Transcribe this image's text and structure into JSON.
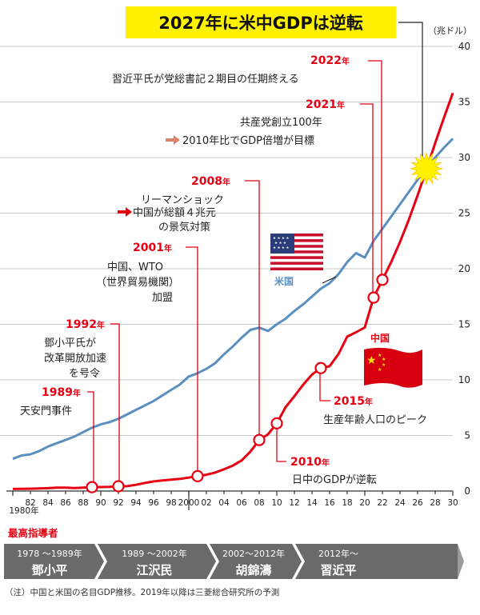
{
  "chart_data": {
    "type": "line",
    "title": "2027年に米中GDPは逆転",
    "ylabel": "（兆ドル）",
    "ylim": [
      0,
      40
    ],
    "yticks": [
      0,
      5,
      10,
      15,
      20,
      25,
      30,
      35,
      40
    ],
    "xlim": [
      1980,
      2030
    ],
    "xtick_labels": [
      {
        "year": 1980,
        "label": "1980年"
      },
      {
        "year": 1982,
        "label": "82"
      },
      {
        "year": 1984,
        "label": "84"
      },
      {
        "year": 1986,
        "label": "86"
      },
      {
        "year": 1988,
        "label": "88"
      },
      {
        "year": 1990,
        "label": "90"
      },
      {
        "year": 1992,
        "label": "92"
      },
      {
        "year": 1994,
        "label": "94"
      },
      {
        "year": 1996,
        "label": "96"
      },
      {
        "year": 1998,
        "label": "98"
      },
      {
        "year": 2000,
        "label": "2000"
      },
      {
        "year": 2002,
        "label": "02"
      },
      {
        "year": 2004,
        "label": "04"
      },
      {
        "year": 2006,
        "label": "06"
      },
      {
        "year": 2008,
        "label": "08"
      },
      {
        "year": 2010,
        "label": "10"
      },
      {
        "year": 2012,
        "label": "12"
      },
      {
        "year": 2014,
        "label": "14"
      },
      {
        "year": 2016,
        "label": "16"
      },
      {
        "year": 2018,
        "label": "18"
      },
      {
        "year": 2020,
        "label": "20"
      },
      {
        "year": 2022,
        "label": "22"
      },
      {
        "year": 2024,
        "label": "24"
      },
      {
        "year": 2026,
        "label": "26"
      },
      {
        "year": 2028,
        "label": "28"
      },
      {
        "year": 2030,
        "label": "30"
      }
    ],
    "series": [
      {
        "name": "米国",
        "color": "#5b8fc0",
        "x": [
          1980,
          1981,
          1982,
          1983,
          1984,
          1985,
          1986,
          1987,
          1988,
          1989,
          1990,
          1991,
          1992,
          1993,
          1994,
          1995,
          1996,
          1997,
          1998,
          1999,
          2000,
          2001,
          2002,
          2003,
          2004,
          2005,
          2006,
          2007,
          2008,
          2009,
          2010,
          2011,
          2012,
          2013,
          2014,
          2015,
          2016,
          2017,
          2018,
          2019,
          2020,
          2021,
          2022,
          2023,
          2024,
          2025,
          2026,
          2027,
          2028,
          2029,
          2030
        ],
        "values": [
          2.9,
          3.2,
          3.3,
          3.6,
          4.0,
          4.3,
          4.6,
          4.9,
          5.3,
          5.7,
          6.0,
          6.2,
          6.5,
          6.9,
          7.3,
          7.7,
          8.1,
          8.6,
          9.1,
          9.6,
          10.3,
          10.6,
          11.0,
          11.5,
          12.3,
          13.0,
          13.8,
          14.5,
          14.7,
          14.4,
          15.0,
          15.5,
          16.2,
          16.8,
          17.5,
          18.2,
          18.7,
          19.5,
          20.6,
          21.4,
          21.0,
          22.5,
          23.6,
          24.7,
          25.8,
          26.9,
          28.0,
          29.0,
          30.0,
          30.9,
          31.7
        ]
      },
      {
        "name": "中国",
        "color": "#e60012",
        "x": [
          1980,
          1981,
          1982,
          1983,
          1984,
          1985,
          1986,
          1987,
          1988,
          1989,
          1990,
          1991,
          1992,
          1993,
          1994,
          1995,
          1996,
          1997,
          1998,
          1999,
          2000,
          2001,
          2002,
          2003,
          2004,
          2005,
          2006,
          2007,
          2008,
          2009,
          2010,
          2011,
          2012,
          2013,
          2014,
          2015,
          2016,
          2017,
          2018,
          2019,
          2020,
          2021,
          2022,
          2023,
          2024,
          2025,
          2026,
          2027,
          2028,
          2029,
          2030
        ],
        "values": [
          0.19,
          0.2,
          0.21,
          0.23,
          0.26,
          0.31,
          0.3,
          0.27,
          0.31,
          0.35,
          0.36,
          0.38,
          0.43,
          0.44,
          0.56,
          0.73,
          0.86,
          0.96,
          1.03,
          1.09,
          1.21,
          1.34,
          1.47,
          1.66,
          1.96,
          2.29,
          2.75,
          3.55,
          4.59,
          5.1,
          6.09,
          7.55,
          8.53,
          9.57,
          10.48,
          11.06,
          11.23,
          12.31,
          13.89,
          14.28,
          14.72,
          17.4,
          19.0,
          20.6,
          22.4,
          24.4,
          26.6,
          28.9,
          31.3,
          33.6,
          35.8
        ]
      }
    ],
    "highlighted_points": [
      {
        "year": 1989,
        "value": 0.35
      },
      {
        "year": 1992,
        "value": 0.43
      },
      {
        "year": 2001,
        "value": 1.34
      },
      {
        "year": 2008,
        "value": 4.59
      },
      {
        "year": 2010,
        "value": 6.09
      },
      {
        "year": 2015,
        "value": 11.06
      },
      {
        "year": 2021,
        "value": 17.4
      },
      {
        "year": 2022,
        "value": 19.0
      }
    ],
    "crossover": {
      "year": 2027,
      "value": 29.0
    }
  },
  "annotations": {
    "y1989": {
      "year": "1989",
      "suffix": "年",
      "lines": [
        "天安門事件"
      ]
    },
    "y1992": {
      "year": "1992",
      "suffix": "年",
      "lines": [
        "鄧小平氏が",
        "改革開放加速",
        "を号令"
      ]
    },
    "y2001": {
      "year": "2001",
      "suffix": "年",
      "lines": [
        "中国、WTO",
        "（世界貿易機関）",
        "加盟"
      ]
    },
    "y2008": {
      "year": "2008",
      "suffix": "年",
      "lines": [
        "リーマンショック",
        "中国が総額４兆元",
        "の景気対策"
      ]
    },
    "y2010": {
      "year": "2010",
      "suffix": "年",
      "lines": [
        "日中のGDPが逆転"
      ]
    },
    "y2015": {
      "year": "2015",
      "suffix": "年",
      "lines": [
        "生産年齢人口のピーク"
      ]
    },
    "y2021": {
      "year": "2021",
      "suffix": "年",
      "lines": [
        "共産党創立100年",
        "2010年比でGDP倍増が目標"
      ]
    },
    "y2022": {
      "year": "2022",
      "suffix": "年",
      "lines": [
        "習近平氏が党総書記２期目の任期終える"
      ]
    }
  },
  "series_labels": {
    "us": "米国",
    "china": "中国"
  },
  "leaders": {
    "heading": "最高指導者",
    "eras": [
      {
        "period": "1978 ～1989年",
        "name": "鄧小平"
      },
      {
        "period": "1989 ～2002年",
        "name": "江沢民"
      },
      {
        "period": "2002～2012年",
        "name": "胡錦濤"
      },
      {
        "period": "2012年～",
        "name": "習近平"
      }
    ]
  },
  "footnote": "（注）中国と米国の名目GDP推移。2019年以降は三菱総合研究所の予測",
  "colors": {
    "us": "#5b8fc0",
    "china": "#e60012",
    "title_bg": "#fff200",
    "band": "#6a6a6a"
  }
}
